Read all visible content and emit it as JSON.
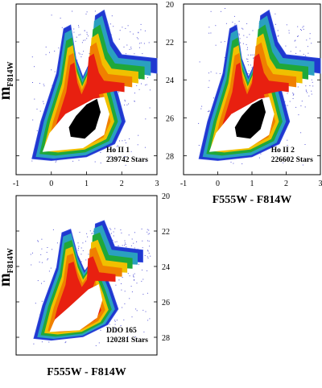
{
  "colors": {
    "scale": [
      "#2038d0",
      "#2aa0c0",
      "#1fa83a",
      "#f0c000",
      "#f08000",
      "#e82010",
      "#ffffff",
      "#000000"
    ],
    "outline": "#3a50e0",
    "scatter": "#5a5ad8"
  },
  "chart_data": [
    {
      "type": "hess-diagram",
      "xlim": [
        -1,
        3
      ],
      "ylim": [
        20,
        29
      ],
      "y_inverted": true,
      "xticks": [
        "-1",
        "0",
        "1",
        "2",
        "3"
      ],
      "yticks": [
        "20",
        "22",
        "24",
        "26",
        "28"
      ],
      "ylabel": "m",
      "ylabel_sub": "F814W",
      "xlabel": "",
      "annotation": [
        "Ho II 1",
        "239742 Stars"
      ],
      "has_black_core": true,
      "extent": "full"
    },
    {
      "type": "hess-diagram",
      "xlim": [
        -1,
        3
      ],
      "ylim": [
        20,
        29
      ],
      "y_inverted": true,
      "xticks": [
        "-1",
        "0",
        "1",
        "2",
        "3"
      ],
      "yticks": [
        "20",
        "22",
        "24",
        "26",
        "28"
      ],
      "ylabel": "",
      "ylabel_sub": "",
      "xlabel": "F555W - F814W",
      "annotation": [
        "Ho II 2",
        "226602 Stars"
      ],
      "has_black_core": true,
      "extent": "full"
    },
    {
      "type": "hess-diagram",
      "xlim": [
        -1,
        3
      ],
      "ylim": [
        20,
        29
      ],
      "y_inverted": true,
      "xticks": [],
      "yticks": [
        "20",
        "22",
        "24",
        "26",
        "28"
      ],
      "ylabel": "m",
      "ylabel_sub": "F814W",
      "xlabel": "F555W - F814W",
      "annotation": [
        "DDO 165",
        "120281 Stars"
      ],
      "has_black_core": false,
      "extent": "compact"
    }
  ]
}
